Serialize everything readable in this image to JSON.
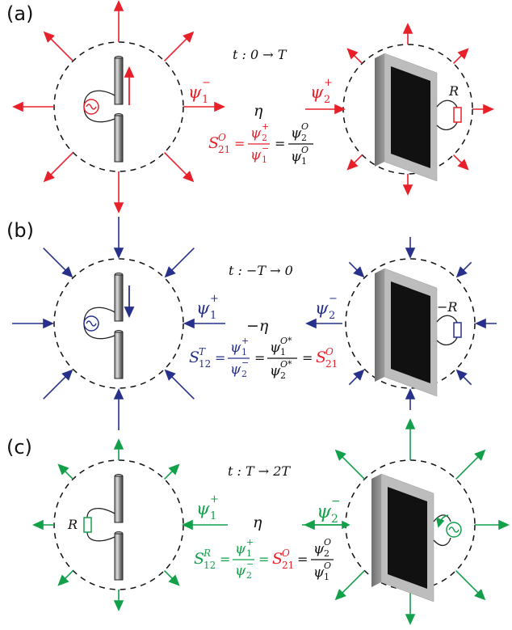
{
  "colors": {
    "red": "#e8202a",
    "blue": "#27318b",
    "green": "#12a04a",
    "black": "#111111"
  },
  "panels": [
    {
      "label": "(a)",
      "time": "t : 0 → T",
      "eta": "η",
      "wave_left": {
        "sym": "ψ",
        "sub": "1",
        "sup": "−"
      },
      "wave_right": {
        "sym": "ψ",
        "sub": "2",
        "sup": "+"
      },
      "load_right": "R",
      "eq": {
        "lhs": "S",
        "lhs_sup": "O",
        "lhs_sub": "21",
        "n1": "ψ",
        "n1_sup": "+",
        "n1_sub": "2",
        "d1": "ψ",
        "d1_sup": "−",
        "d1_sub": "1",
        "n2": "ψ",
        "n2_sup": "O",
        "n2_sub": "2",
        "d2": "ψ",
        "d2_sup": "O",
        "d2_sub": "1"
      }
    },
    {
      "label": "(b)",
      "time": "t : −T → 0",
      "eta": "−η",
      "wave_left": {
        "sym": "ψ",
        "sub": "1",
        "sup": "+"
      },
      "wave_right": {
        "sym": "ψ",
        "sub": "2",
        "sup": "−"
      },
      "load_right": "−R",
      "eq": {
        "lhs": "S",
        "lhs_sup": "T",
        "lhs_sub": "12",
        "n1": "ψ",
        "n1_sup": "+",
        "n1_sub": "1",
        "d1": "ψ",
        "d1_sup": "−",
        "d1_sub": "2",
        "n2": "ψ",
        "n2_sup": "O*",
        "n2_sub": "1",
        "d2": "ψ",
        "d2_sup": "O*",
        "d2_sub": "2",
        "rhs": "S",
        "rhs_sup": "O",
        "rhs_sub": "21"
      }
    },
    {
      "label": "(c)",
      "time": "t : T → 2T",
      "eta": "η",
      "wave_left": {
        "sym": "ψ",
        "sub": "1",
        "sup": "+"
      },
      "wave_right": {
        "sym": "ψ",
        "sub": "2",
        "sup": "−"
      },
      "load_left": "R",
      "eq": {
        "lhs": "S",
        "lhs_sup": "R",
        "lhs_sub": "12",
        "n1": "ψ",
        "n1_sup": "+",
        "n1_sub": "1",
        "d1": "ψ",
        "d1_sup": "−",
        "d1_sub": "2",
        "mid": "S",
        "mid_sup": "O",
        "mid_sub": "21",
        "n2": "ψ",
        "n2_sup": "O",
        "n2_sub": "2",
        "d2": "ψ",
        "d2_sup": "O",
        "d2_sub": "1"
      }
    }
  ]
}
